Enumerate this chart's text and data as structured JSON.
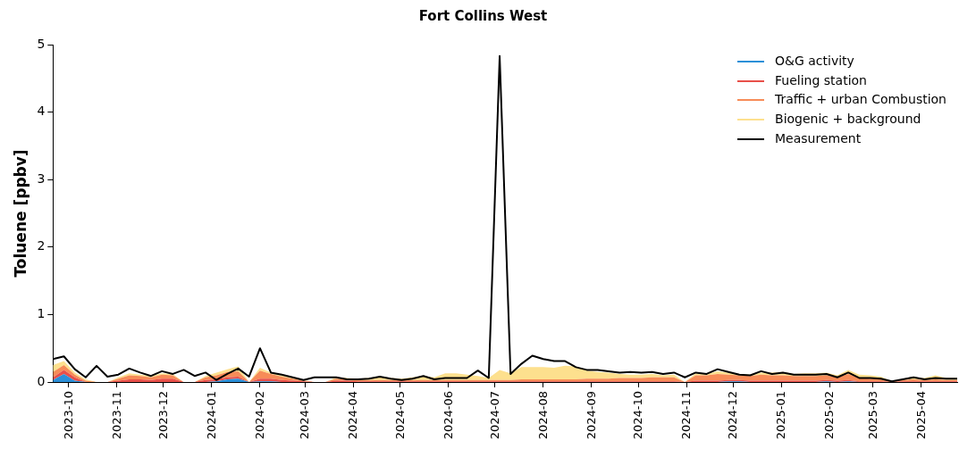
{
  "chart_data": {
    "type": "area",
    "title": "Fort Collins West",
    "ylabel": "Toluene [ppbv]",
    "stacked": true,
    "legend": "top right",
    "grid": false,
    "x": [
      "2023-09-21",
      "2023-09-28",
      "2023-10-05",
      "2023-10-12",
      "2023-10-19",
      "2023-10-26",
      "2023-11-02",
      "2023-11-09",
      "2023-11-16",
      "2023-11-23",
      "2023-11-30",
      "2023-12-07",
      "2023-12-14",
      "2023-12-21",
      "2023-12-28",
      "2024-01-04",
      "2024-01-11",
      "2024-01-18",
      "2024-01-25",
      "2024-02-01",
      "2024-02-08",
      "2024-02-15",
      "2024-02-22",
      "2024-02-29",
      "2024-03-07",
      "2024-03-14",
      "2024-03-21",
      "2024-03-28",
      "2024-04-04",
      "2024-04-11",
      "2024-04-18",
      "2024-04-25",
      "2024-05-02",
      "2024-05-09",
      "2024-05-16",
      "2024-05-23",
      "2024-05-30",
      "2024-06-06",
      "2024-06-13",
      "2024-06-20",
      "2024-06-27",
      "2024-07-04",
      "2024-07-11",
      "2024-07-18",
      "2024-07-25",
      "2024-08-01",
      "2024-08-08",
      "2024-08-15",
      "2024-08-22",
      "2024-08-29",
      "2024-09-05",
      "2024-09-12",
      "2024-09-19",
      "2024-09-26",
      "2024-10-03",
      "2024-10-10",
      "2024-10-17",
      "2024-10-24",
      "2024-10-31",
      "2024-11-07",
      "2024-11-14",
      "2024-11-21",
      "2024-11-28",
      "2024-12-05",
      "2024-12-12",
      "2024-12-19",
      "2024-12-26",
      "2025-01-02",
      "2025-01-09",
      "2025-01-16",
      "2025-01-23",
      "2025-01-30",
      "2025-02-06",
      "2025-02-13",
      "2025-02-20",
      "2025-02-27",
      "2025-03-06",
      "2025-03-13",
      "2025-03-20",
      "2025-03-27",
      "2025-04-03",
      "2025-04-10",
      "2025-04-17",
      "2025-04-24"
    ],
    "xlim": [
      "2023-09-21",
      "2025-04-24"
    ],
    "xticks": [
      "2023-10",
      "2023-11",
      "2023-12",
      "2024-01",
      "2024-02",
      "2024-03",
      "2024-04",
      "2024-05",
      "2024-06",
      "2024-07",
      "2024-08",
      "2024-09",
      "2024-10",
      "2024-11",
      "2024-12",
      "2025-01",
      "2025-02",
      "2025-03",
      "2025-04"
    ],
    "ylim": [
      0,
      5
    ],
    "yticks": [
      0,
      1,
      2,
      3,
      4,
      5
    ],
    "series": [
      {
        "name": "O&G activity",
        "type": "area",
        "color": "#2b8fd8",
        "values": [
          0.03,
          0.12,
          0.02,
          0,
          0,
          0,
          0,
          0,
          0,
          0,
          0,
          0,
          0,
          0,
          0,
          0.01,
          0.04,
          0.05,
          0,
          0.01,
          0.01,
          0,
          0,
          0,
          0,
          0,
          0,
          0,
          0,
          0,
          0,
          0,
          0,
          0,
          0,
          0,
          0,
          0,
          0,
          0,
          0,
          0,
          0,
          0,
          0,
          0,
          0,
          0,
          0,
          0,
          0,
          0,
          0,
          0,
          0,
          0,
          0,
          0,
          0,
          0,
          0,
          0,
          0.01,
          0.01,
          0,
          0,
          0,
          0,
          0,
          0,
          0,
          0.01,
          0,
          0.01,
          0,
          0,
          0,
          0,
          0,
          0,
          0,
          0,
          0,
          0
        ]
      },
      {
        "name": "Fueling station",
        "type": "area",
        "color": "#e8504a",
        "values": [
          0.04,
          0.06,
          0.05,
          0,
          0,
          0,
          0.02,
          0.04,
          0.04,
          0.03,
          0.05,
          0.05,
          0,
          0,
          0.03,
          0.03,
          0.03,
          0.03,
          0,
          0.04,
          0.04,
          0.03,
          0.02,
          0.01,
          0,
          0,
          0.02,
          0.02,
          0.01,
          0.01,
          0.01,
          0.01,
          0.01,
          0.01,
          0.01,
          0.01,
          0.01,
          0.01,
          0.01,
          0.01,
          0.01,
          0.01,
          0.01,
          0.01,
          0.01,
          0.01,
          0.01,
          0.01,
          0.01,
          0.01,
          0.01,
          0.01,
          0.01,
          0.01,
          0.01,
          0.01,
          0.01,
          0.01,
          0,
          0.02,
          0.02,
          0.02,
          0.02,
          0.02,
          0.02,
          0.02,
          0.02,
          0.02,
          0.02,
          0.02,
          0.02,
          0.02,
          0.02,
          0.02,
          0.01,
          0.01,
          0.01,
          0,
          0.01,
          0.01,
          0.01,
          0.01,
          0.01,
          0.01
        ]
      },
      {
        "name": "Traffic + urban Combustion",
        "type": "area",
        "color": "#f78c58",
        "values": [
          0.08,
          0.07,
          0.04,
          0.02,
          0,
          0,
          0.03,
          0.06,
          0.05,
          0.04,
          0.06,
          0.05,
          0,
          0,
          0.04,
          0.06,
          0.08,
          0.08,
          0,
          0.12,
          0.07,
          0.05,
          0.03,
          0.01,
          0,
          0,
          0.03,
          0.02,
          0.02,
          0.02,
          0.02,
          0.02,
          0.02,
          0.02,
          0.02,
          0.02,
          0.02,
          0.02,
          0.02,
          0.02,
          0.02,
          0.02,
          0.02,
          0.03,
          0.03,
          0.03,
          0.03,
          0.03,
          0.03,
          0.04,
          0.04,
          0.04,
          0.05,
          0.05,
          0.05,
          0.06,
          0.06,
          0.06,
          0,
          0.08,
          0.08,
          0.1,
          0.08,
          0.07,
          0.07,
          0.09,
          0.08,
          0.08,
          0.07,
          0.07,
          0.07,
          0.07,
          0.05,
          0.09,
          0.05,
          0.04,
          0.03,
          0.01,
          0.02,
          0.03,
          0.02,
          0.03,
          0.02,
          0.02
        ]
      },
      {
        "name": "Biogenic + background",
        "type": "area",
        "color": "#fde08e",
        "values": [
          0.1,
          0.06,
          0.03,
          0.02,
          0,
          0,
          0.02,
          0.03,
          0.02,
          0.02,
          0.02,
          0.02,
          0,
          0,
          0.02,
          0.04,
          0.04,
          0.07,
          0,
          0.04,
          0.02,
          0.02,
          0.02,
          0.01,
          0,
          0,
          0.02,
          0.02,
          0.02,
          0.03,
          0.05,
          0.03,
          0.02,
          0.04,
          0.06,
          0.04,
          0.1,
          0.1,
          0.08,
          0.06,
          0.03,
          0.15,
          0.1,
          0.18,
          0.18,
          0.18,
          0.17,
          0.2,
          0.19,
          0.12,
          0.1,
          0.09,
          0.06,
          0.05,
          0.05,
          0.05,
          0.03,
          0.04,
          0,
          0.03,
          0.02,
          0.04,
          0.03,
          0.02,
          0.02,
          0.03,
          0.04,
          0.05,
          0.03,
          0.04,
          0.04,
          0.04,
          0.03,
          0.06,
          0.05,
          0.05,
          0.04,
          0,
          0.01,
          0.02,
          0.03,
          0.06,
          0.03,
          0.03
        ]
      },
      {
        "name": "Measurement",
        "type": "line",
        "color": "#000000",
        "values": [
          0.34,
          0.38,
          0.19,
          0.07,
          0.24,
          0.08,
          0.11,
          0.2,
          0.14,
          0.09,
          0.16,
          0.12,
          0.18,
          0.09,
          0.14,
          0.03,
          0.12,
          0.2,
          0.08,
          0.5,
          0.14,
          0.11,
          0.07,
          0.03,
          0.07,
          0.07,
          0.07,
          0.04,
          0.04,
          0.05,
          0.08,
          0.05,
          0.03,
          0.05,
          0.09,
          0.04,
          0.06,
          0.06,
          0.06,
          0.17,
          0.06,
          4.83,
          0.12,
          0.27,
          0.39,
          0.34,
          0.31,
          0.31,
          0.22,
          0.18,
          0.18,
          0.16,
          0.14,
          0.15,
          0.14,
          0.15,
          0.12,
          0.14,
          0.07,
          0.14,
          0.12,
          0.19,
          0.15,
          0.11,
          0.1,
          0.16,
          0.12,
          0.14,
          0.11,
          0.11,
          0.11,
          0.12,
          0.07,
          0.14,
          0.06,
          0.06,
          0.05,
          0.01,
          0.04,
          0.07,
          0.04,
          0.06,
          0.05,
          0.05
        ]
      }
    ]
  }
}
